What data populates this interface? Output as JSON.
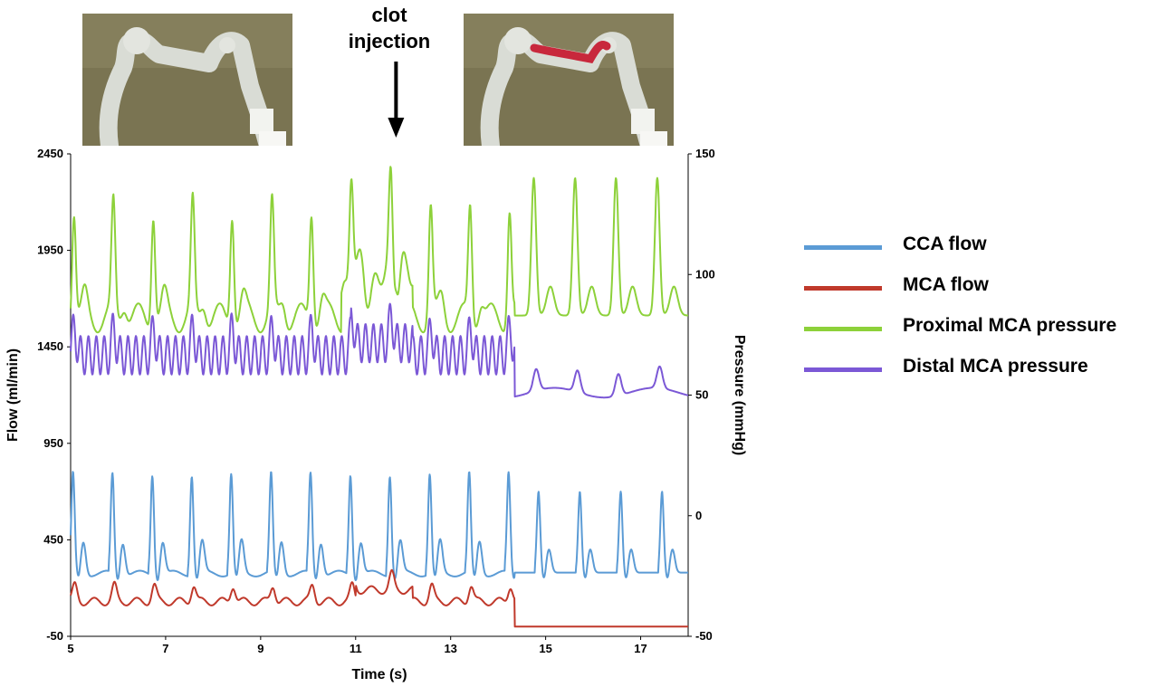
{
  "annotation": {
    "line1": "clot",
    "line2": "injection"
  },
  "photos": {
    "before": {
      "label": "vessel-model-before-clot"
    },
    "after": {
      "label": "vessel-model-after-clot"
    }
  },
  "chart_data": {
    "type": "line",
    "x_label": "Time (s)",
    "y_left_label": "Flow  (ml/min)",
    "y_right_label": "Pressure (mmHg)",
    "x_range": [
      5,
      18
    ],
    "x_ticks": [
      5,
      7,
      9,
      11,
      13,
      15,
      17
    ],
    "y_left_range": [
      -50,
      2450
    ],
    "y_left_ticks": [
      -50,
      450,
      950,
      1450,
      1950,
      2450
    ],
    "y_right_range": [
      -50,
      150
    ],
    "y_right_ticks": [
      -50,
      0,
      50,
      100,
      150
    ],
    "clot_injection_time": 11.85,
    "legend_position": "right",
    "colors": {
      "cca": "#5b9bd5",
      "mca": "#c0392b",
      "proximal": "#8dd13a",
      "distal": "#7b58d6"
    },
    "series": [
      {
        "name": "CCA flow",
        "axis": "left",
        "color": "#5b9bd5",
        "before_clot": {
          "baseline": 275,
          "peak": 790,
          "secondary_peak": 440,
          "beats_at": [
            5.05,
            5.88,
            6.72,
            7.55,
            8.38,
            9.22,
            10.05,
            10.89,
            11.72,
            12.56,
            13.39,
            14.22
          ]
        },
        "after_clot": {
          "baseline": 280,
          "peak": 700,
          "secondary_peak": 400,
          "beats_at": [
            14.85,
            15.72,
            16.58,
            17.45
          ]
        }
      },
      {
        "name": "MCA flow",
        "axis": "left",
        "color": "#c0392b",
        "before_clot": {
          "baseline": 130,
          "peak": 250
        },
        "after_clot": {
          "value": 0
        },
        "occlusion_time": 14.35
      },
      {
        "name": "Proximal MCA pressure",
        "axis": "right",
        "color": "#8dd13a",
        "before_clot": {
          "diastolic": 82,
          "systolic": 128,
          "clot_peak": 150
        },
        "after_clot": {
          "diastolic": 83,
          "systolic": 140
        }
      },
      {
        "name": "Distal MCA pressure",
        "axis": "right",
        "color": "#7b58d6",
        "before_clot": {
          "low": 55,
          "high": 82,
          "oscillation_hz": 6
        },
        "after_clot": {
          "diastolic": 51,
          "systolic": 60
        }
      }
    ]
  }
}
